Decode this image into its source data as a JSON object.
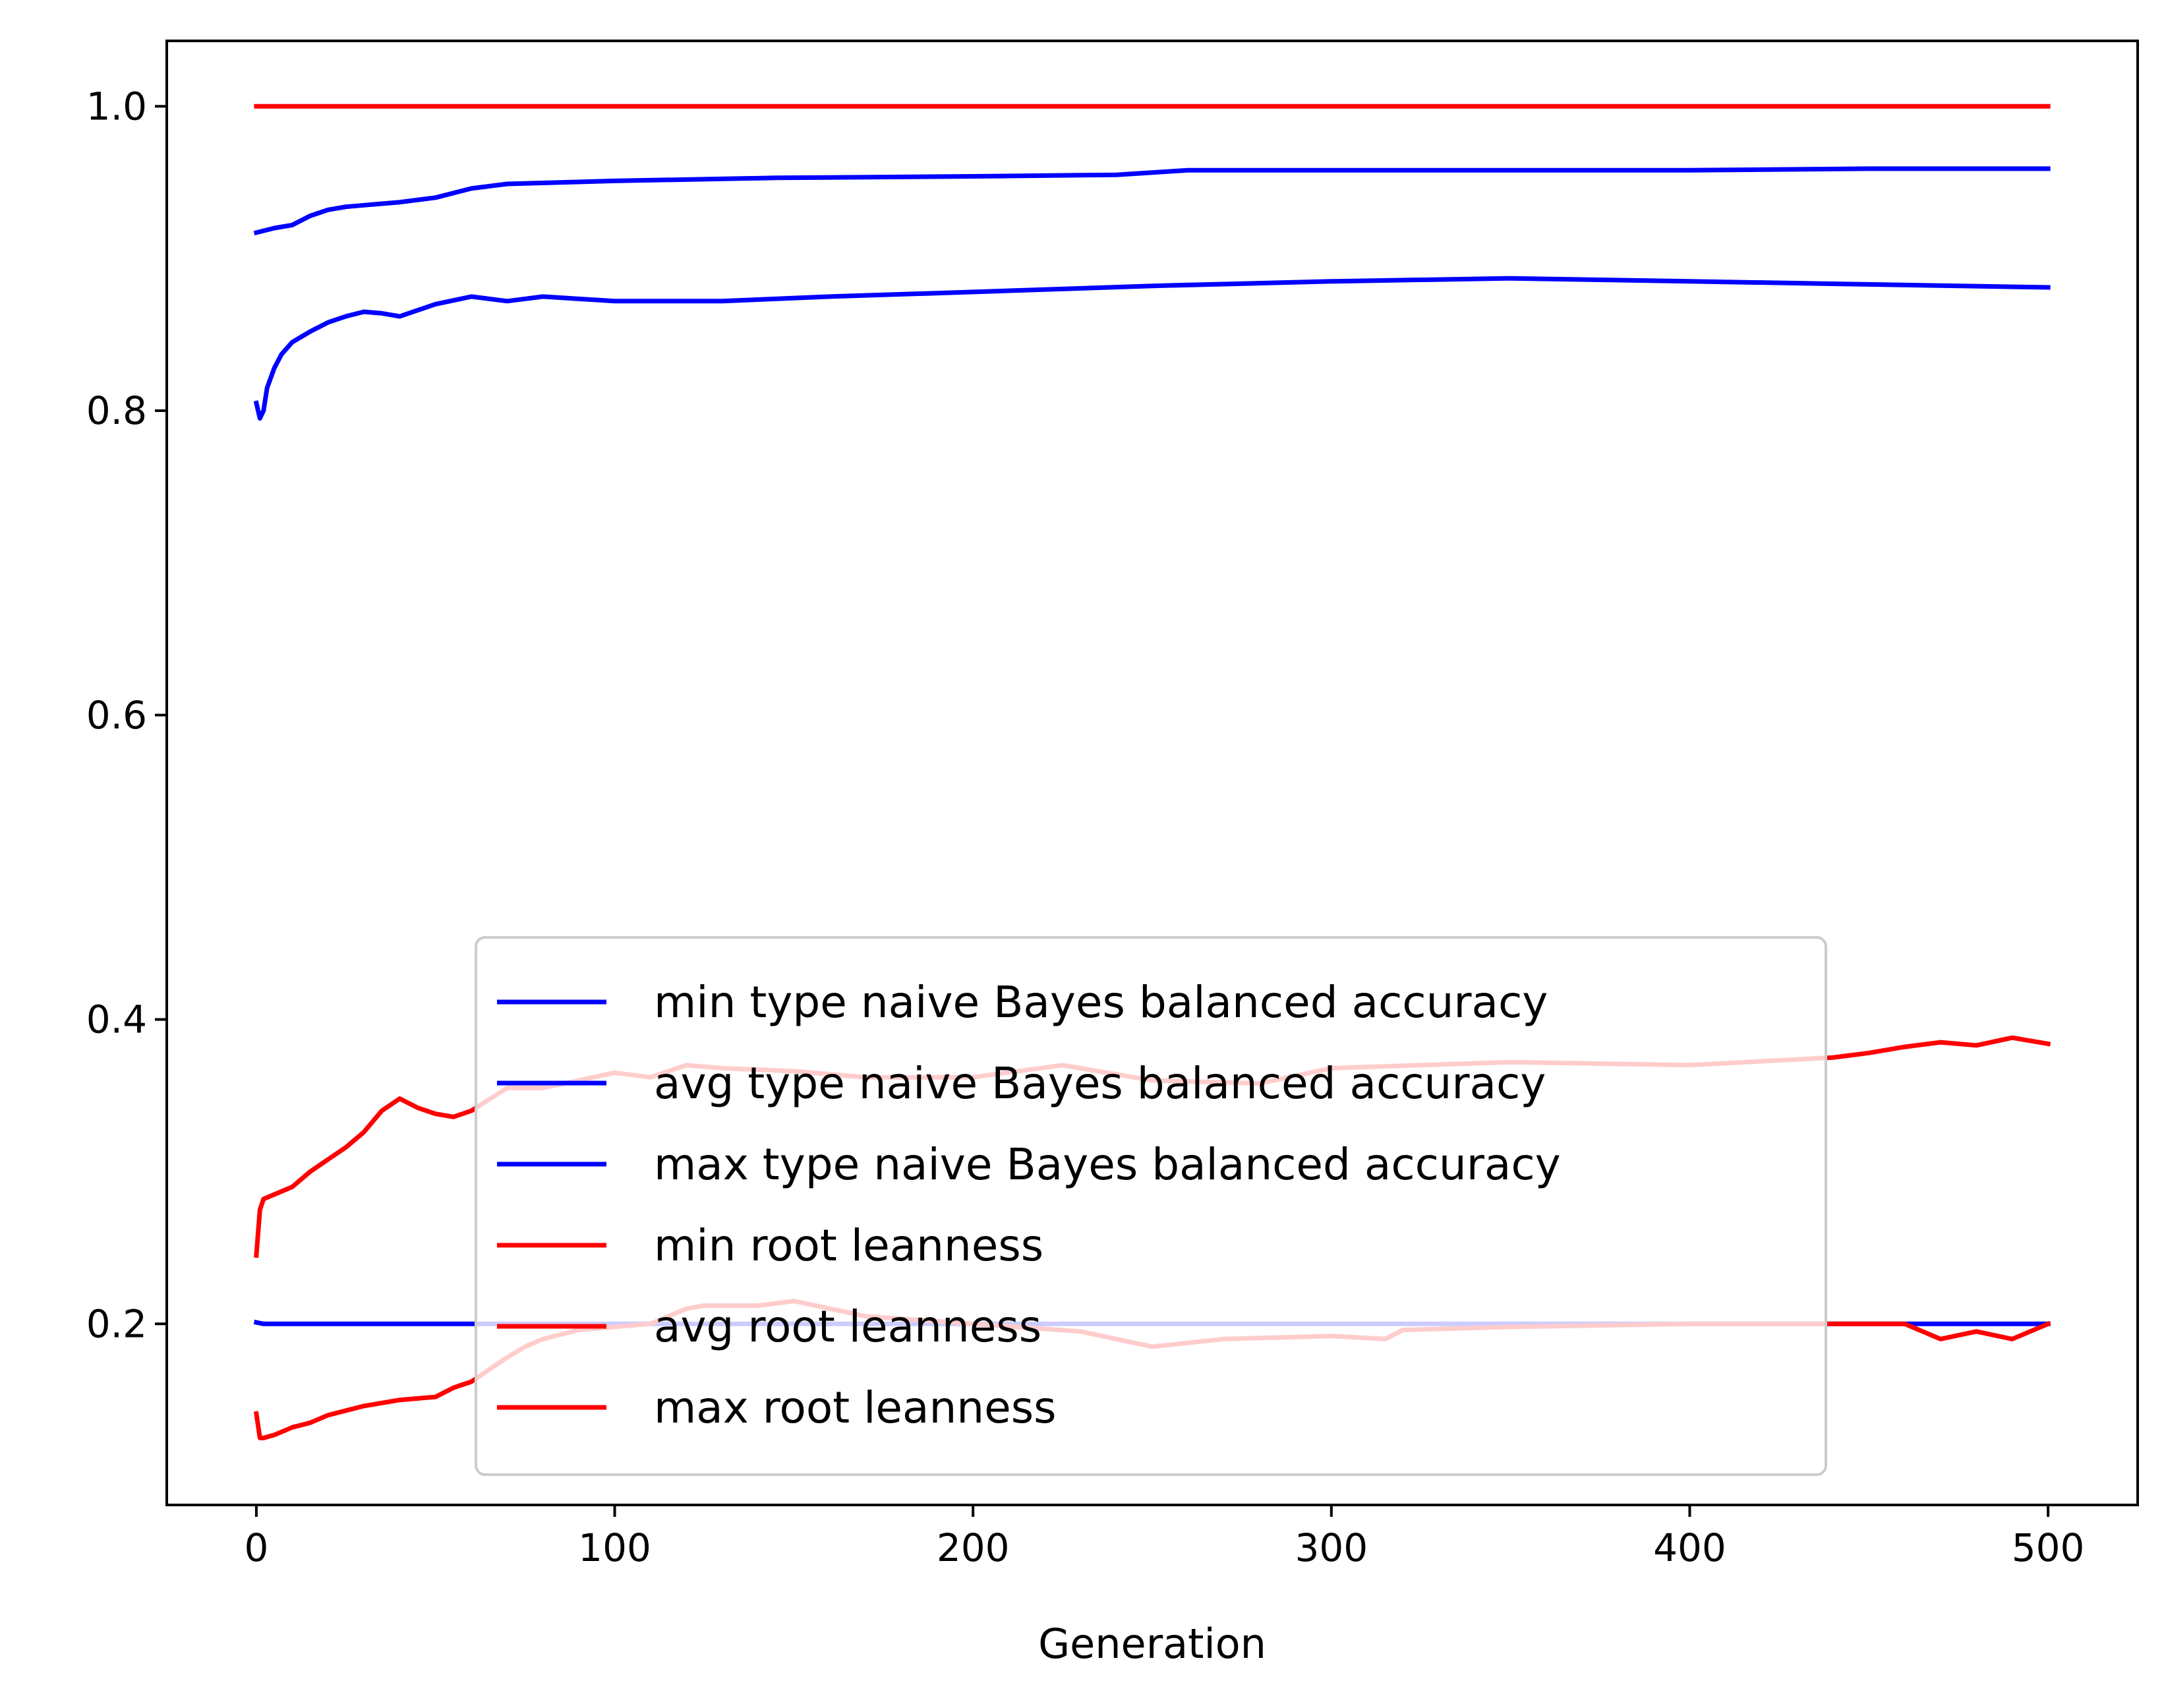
{
  "chart_data": {
    "type": "line",
    "title": "",
    "xlabel": "Generation",
    "ylabel": "",
    "xlim": [
      -25,
      525
    ],
    "ylim": [
      0.081,
      1.043
    ],
    "xticks": [
      0,
      100,
      200,
      300,
      400,
      500
    ],
    "xtick_labels": [
      "0",
      "100",
      "200",
      "300",
      "400",
      "500"
    ],
    "yticks": [
      0.2,
      0.4,
      0.6,
      0.8,
      1.0
    ],
    "ytick_labels": [
      "0.2",
      "0.4",
      "0.6",
      "0.8",
      "1.0"
    ],
    "grid": false,
    "legend_position": "lower center",
    "series": [
      {
        "name": "min type naive Bayes balanced accuracy",
        "color": "#0000ff",
        "x": [
          0,
          2,
          500
        ],
        "y": [
          0.201,
          0.2,
          0.2
        ]
      },
      {
        "name": "avg type naive Bayes balanced accuracy",
        "color": "#0000ff",
        "x": [
          0,
          1,
          2,
          3,
          5,
          7,
          10,
          15,
          20,
          25,
          30,
          35,
          40,
          50,
          60,
          70,
          80,
          100,
          130,
          160,
          200,
          250,
          300,
          350,
          400,
          450,
          500
        ],
        "y": [
          0.805,
          0.795,
          0.8,
          0.815,
          0.828,
          0.837,
          0.845,
          0.852,
          0.858,
          0.862,
          0.865,
          0.864,
          0.862,
          0.87,
          0.875,
          0.872,
          0.875,
          0.872,
          0.872,
          0.875,
          0.878,
          0.882,
          0.885,
          0.887,
          0.885,
          0.883,
          0.881
        ]
      },
      {
        "name": "max type naive Bayes balanced accuracy",
        "color": "#0000ff",
        "x": [
          0,
          5,
          10,
          15,
          20,
          25,
          30,
          40,
          50,
          60,
          70,
          100,
          145,
          200,
          240,
          260,
          300,
          400,
          450,
          500
        ],
        "y": [
          0.917,
          0.92,
          0.922,
          0.928,
          0.932,
          0.934,
          0.935,
          0.937,
          0.94,
          0.946,
          0.949,
          0.951,
          0.953,
          0.954,
          0.955,
          0.958,
          0.958,
          0.958,
          0.959,
          0.959
        ]
      },
      {
        "name": "min root leanness",
        "color": "#ff0000",
        "x": [
          0,
          1,
          2,
          5,
          10,
          15,
          20,
          30,
          40,
          50,
          55,
          60,
          65,
          70,
          75,
          80,
          90,
          100,
          110,
          120,
          125,
          140,
          150,
          160,
          170,
          200,
          230,
          250,
          270,
          300,
          315,
          320,
          350,
          400,
          440,
          460,
          470,
          480,
          490,
          500
        ],
        "y": [
          0.141,
          0.125,
          0.125,
          0.127,
          0.132,
          0.135,
          0.14,
          0.146,
          0.15,
          0.152,
          0.158,
          0.162,
          0.17,
          0.178,
          0.185,
          0.19,
          0.196,
          0.198,
          0.2,
          0.21,
          0.212,
          0.212,
          0.215,
          0.21,
          0.205,
          0.2,
          0.195,
          0.185,
          0.19,
          0.192,
          0.19,
          0.196,
          0.198,
          0.2,
          0.2,
          0.2,
          0.19,
          0.195,
          0.19,
          0.2
        ]
      },
      {
        "name": "avg root leanness",
        "color": "#ff0000",
        "x": [
          0,
          1,
          2,
          5,
          10,
          15,
          20,
          25,
          30,
          35,
          40,
          45,
          50,
          55,
          60,
          70,
          80,
          90,
          100,
          110,
          120,
          130,
          150,
          170,
          200,
          225,
          250,
          280,
          300,
          350,
          400,
          440,
          450,
          460,
          470,
          480,
          490,
          500
        ],
        "y": [
          0.245,
          0.275,
          0.282,
          0.285,
          0.29,
          0.3,
          0.308,
          0.316,
          0.326,
          0.34,
          0.348,
          0.342,
          0.338,
          0.336,
          0.34,
          0.355,
          0.355,
          0.36,
          0.365,
          0.362,
          0.37,
          0.368,
          0.366,
          0.362,
          0.362,
          0.37,
          0.36,
          0.358,
          0.368,
          0.372,
          0.37,
          0.375,
          0.378,
          0.382,
          0.385,
          0.383,
          0.388,
          0.384
        ]
      },
      {
        "name": "max root leanness",
        "color": "#ff0000",
        "x": [
          0,
          500
        ],
        "y": [
          1.0,
          1.0
        ]
      }
    ]
  }
}
